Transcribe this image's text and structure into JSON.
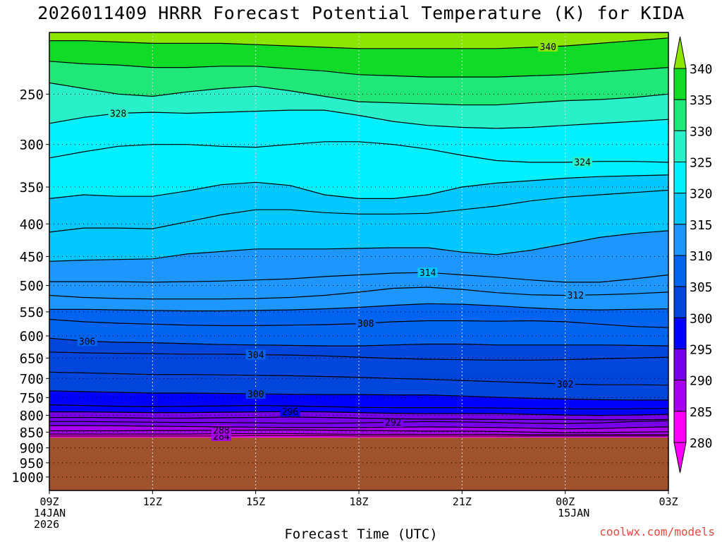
{
  "title": "2026011409 HRRR Forecast Potential Temperature (K) for KIDA",
  "credit": "coolwx.com/models",
  "colors": {
    "terrain": "#a0522d",
    "credit": "#e8493e",
    "fill_levels": [
      {
        "min": 280,
        "color": "#ff00ff"
      },
      {
        "min": 285,
        "color": "#a800f0"
      },
      {
        "min": 290,
        "color": "#7800e8"
      },
      {
        "min": 295,
        "color": "#0000ff"
      },
      {
        "min": 300,
        "color": "#0046dc"
      },
      {
        "min": 305,
        "color": "#0064f0"
      },
      {
        "min": 310,
        "color": "#1e96ff"
      },
      {
        "min": 315,
        "color": "#00c8ff"
      },
      {
        "min": 320,
        "color": "#00f0ff"
      },
      {
        "min": 325,
        "color": "#28f0c8"
      },
      {
        "min": 330,
        "color": "#20e878"
      },
      {
        "min": 335,
        "color": "#10dc28"
      },
      {
        "min": 340,
        "color": "#8ce600"
      }
    ]
  },
  "chart_data": {
    "type": "heatmap",
    "title": "2026011409 HRRR Forecast Potential Temperature (K) for KIDA",
    "xlabel": "Forecast Time (UTC)",
    "ylabel": "",
    "y_scale": "log",
    "y_reversed": true,
    "x_ticks": [
      {
        "hour": 0,
        "lines": [
          "09Z",
          "14JAN",
          "2026"
        ]
      },
      {
        "hour": 3,
        "lines": [
          "12Z"
        ]
      },
      {
        "hour": 6,
        "lines": [
          "15Z"
        ]
      },
      {
        "hour": 9,
        "lines": [
          "18Z"
        ]
      },
      {
        "hour": 12,
        "lines": [
          "21Z"
        ]
      },
      {
        "hour": 15,
        "lines": [
          "00Z",
          "15JAN"
        ]
      },
      {
        "hour": 18,
        "lines": [
          "03Z"
        ]
      }
    ],
    "xlim": [
      0,
      18
    ],
    "y_ticks": [
      250,
      300,
      350,
      400,
      450,
      500,
      550,
      600,
      650,
      700,
      750,
      800,
      850,
      900,
      950,
      1000
    ],
    "ylim": [
      1050,
      200
    ],
    "surface_pressure_hpa": 867,
    "colorbar": {
      "ticks": [
        280,
        285,
        290,
        295,
        300,
        305,
        310,
        315,
        320,
        325,
        330,
        335,
        340
      ],
      "range": [
        280,
        340
      ],
      "extend": "both"
    },
    "x_hours": [
      0,
      1,
      2,
      3,
      4,
      5,
      6,
      7,
      8,
      9,
      10,
      11,
      12,
      13,
      14,
      15,
      16,
      17,
      18
    ],
    "contour_interval": 2,
    "contours": [
      {
        "theta": 340,
        "label_hour": 14.5,
        "pressure": [
          206,
          206,
          207,
          208,
          208,
          208,
          209,
          210,
          211,
          212,
          212,
          212,
          212,
          212,
          211,
          210,
          208,
          206,
          204
        ]
      },
      {
        "theta": 336,
        "label_hour": null,
        "pressure": [
          222,
          224,
          225,
          227,
          227,
          226,
          226,
          228,
          230,
          233,
          234,
          235,
          235,
          235,
          234,
          233,
          231,
          229,
          227
        ]
      },
      {
        "theta": 332,
        "label_hour": null,
        "pressure": [
          240,
          245,
          250,
          252,
          248,
          245,
          243,
          247,
          252,
          257,
          258,
          259,
          260,
          260,
          258,
          256,
          255,
          253,
          250
        ]
      },
      {
        "theta": 328,
        "label_hour": 2,
        "pressure": [
          278,
          272,
          268,
          267,
          268,
          267,
          266,
          265,
          265,
          270,
          276,
          280,
          282,
          283,
          282,
          280,
          278,
          276,
          274
        ]
      },
      {
        "theta": 324,
        "label_hour": 15.5,
        "pressure": [
          315,
          308,
          302,
          300,
          300,
          302,
          303,
          300,
          297,
          297,
          300,
          305,
          312,
          318,
          320,
          320,
          319,
          319,
          320
        ]
      },
      {
        "theta": 320,
        "label_hour": null,
        "pressure": [
          365,
          360,
          362,
          362,
          355,
          347,
          344,
          348,
          360,
          365,
          365,
          360,
          350,
          345,
          342,
          339,
          337,
          336,
          335
        ]
      },
      {
        "theta": 318,
        "label_hour": null,
        "pressure": [
          412,
          406,
          406,
          407,
          397,
          387,
          380,
          380,
          384,
          386,
          386,
          385,
          380,
          375,
          368,
          363,
          360,
          357,
          354
        ]
      },
      {
        "theta": 316,
        "label_hour": null,
        "pressure": [
          458,
          456,
          455,
          454,
          446,
          442,
          438,
          438,
          438,
          437,
          436,
          436,
          443,
          447,
          440,
          430,
          420,
          414,
          410
        ]
      },
      {
        "theta": 314,
        "label_hour": 11,
        "pressure": [
          493,
          493,
          493,
          494,
          493,
          492,
          490,
          488,
          484,
          481,
          478,
          477,
          481,
          485,
          490,
          494,
          494,
          488,
          481
        ]
      },
      {
        "theta": 312,
        "label_hour": 15.3,
        "pressure": [
          518,
          522,
          524,
          525,
          525,
          525,
          524,
          522,
          518,
          512,
          505,
          503,
          507,
          513,
          517,
          518,
          517,
          515,
          512
        ]
      },
      {
        "theta": 310,
        "label_hour": null,
        "pressure": [
          545,
          545,
          546,
          547,
          548,
          548,
          547,
          546,
          544,
          541,
          537,
          534,
          535,
          538,
          542,
          545,
          546,
          545,
          544
        ]
      },
      {
        "theta": 308,
        "label_hour": 9.2,
        "pressure": [
          565,
          570,
          573,
          575,
          577,
          578,
          578,
          577,
          576,
          574,
          570,
          568,
          568,
          569,
          568,
          570,
          575,
          580,
          582
        ]
      },
      {
        "theta": 306,
        "label_hour": 1.1,
        "pressure": [
          605,
          611,
          614,
          615,
          617,
          619,
          620,
          621,
          622,
          622,
          620,
          618,
          618,
          620,
          620,
          620,
          620,
          621,
          622
        ]
      },
      {
        "theta": 304,
        "label_hour": 6,
        "pressure": [
          636,
          638,
          639,
          640,
          641,
          641,
          642,
          643,
          645,
          648,
          651,
          653,
          654,
          655,
          655,
          654,
          652,
          650,
          648
        ]
      },
      {
        "theta": 302,
        "label_hour": 15,
        "pressure": [
          684,
          686,
          688,
          690,
          690,
          691,
          692,
          693,
          695,
          697,
          700,
          702,
          705,
          708,
          711,
          714,
          716,
          716,
          717
        ]
      },
      {
        "theta": 300,
        "label_hour": 6,
        "pressure": [
          732,
          734,
          736,
          738,
          738,
          739,
          740,
          741,
          742,
          742,
          743,
          743,
          746,
          749,
          752,
          754,
          756,
          757,
          757
        ]
      },
      {
        "theta": 298,
        "label_hour": null,
        "pressure": [
          770,
          772,
          774,
          775,
          774,
          773,
          772,
          773,
          775,
          777,
          778,
          778,
          778,
          779,
          780,
          781,
          781,
          781,
          780
        ]
      },
      {
        "theta": 296,
        "label_hour": 7,
        "pressure": [
          790,
          790,
          791,
          792,
          792,
          791,
          790,
          789,
          790,
          792,
          794,
          795,
          795,
          795,
          797,
          799,
          800,
          799,
          797
        ]
      },
      {
        "theta": 294,
        "label_hour": null,
        "pressure": [
          806,
          806,
          807,
          808,
          808,
          807,
          806,
          805,
          806,
          808,
          810,
          811,
          811,
          812,
          812,
          812,
          813,
          813,
          812
        ]
      },
      {
        "theta": 292,
        "label_hour": 10,
        "pressure": [
          818,
          818,
          819,
          820,
          821,
          821,
          822,
          823,
          823,
          822,
          820,
          818,
          819,
          821,
          823,
          824,
          822,
          818,
          816
        ]
      },
      {
        "theta": 290,
        "label_hour": null,
        "pressure": [
          830,
          830,
          831,
          832,
          833,
          834,
          835,
          836,
          836,
          836,
          835,
          834,
          835,
          836,
          838,
          840,
          839,
          836,
          834
        ]
      },
      {
        "theta": 288,
        "label_hour": 5,
        "pressure": [
          846,
          846,
          846,
          845,
          845,
          844,
          844,
          843,
          844,
          845,
          846,
          847,
          847,
          848,
          850,
          852,
          851,
          850,
          849
        ]
      },
      {
        "theta": 286,
        "label_hour": null,
        "pressure": [
          856,
          856,
          856,
          856,
          856,
          855,
          855,
          855,
          856,
          857,
          857,
          857,
          857,
          857,
          858,
          858,
          858,
          858,
          858
        ]
      },
      {
        "theta": 284,
        "label_hour": 5,
        "pressure": [
          862,
          862,
          862,
          862,
          862,
          862,
          861,
          861,
          861,
          862,
          862,
          862,
          862,
          862,
          862,
          862,
          862,
          862,
          862
        ]
      }
    ]
  }
}
